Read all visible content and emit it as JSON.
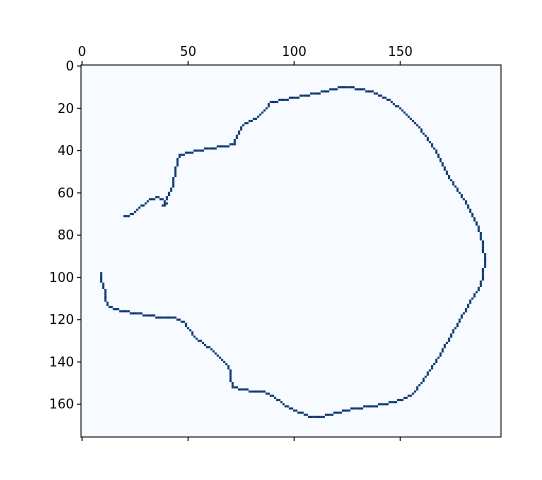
{
  "chart_data": {
    "type": "heatmap",
    "colormap": "Blues",
    "background_color": "#f7fbff",
    "foreground_color": "#08306b",
    "x_ticks": [
      0,
      50,
      100,
      150
    ],
    "x_extra_ticks_unlabeled": [
      200
    ],
    "y_ticks": [
      0,
      20,
      40,
      60,
      80,
      100,
      120,
      140,
      160
    ],
    "xlim": [
      -0.5,
      197.5
    ],
    "ylim": [
      175.5,
      -0.5
    ],
    "x_tick_position": "top",
    "grid": false,
    "legend": "none",
    "contour": [
      [
        20,
        71
      ],
      [
        24,
        70
      ],
      [
        27,
        67
      ],
      [
        30,
        65
      ],
      [
        32,
        63
      ],
      [
        36,
        62
      ],
      [
        38,
        63
      ],
      [
        40,
        65
      ],
      [
        38,
        66
      ],
      [
        40,
        63
      ],
      [
        40,
        62
      ],
      [
        41,
        60
      ],
      [
        42,
        58
      ],
      [
        43,
        56
      ],
      [
        43,
        53
      ],
      [
        44,
        51
      ],
      [
        44,
        48
      ],
      [
        45,
        46
      ],
      [
        45,
        44
      ],
      [
        46,
        42
      ],
      [
        50,
        41
      ],
      [
        55,
        40
      ],
      [
        60,
        39
      ],
      [
        66,
        38
      ],
      [
        72,
        37
      ],
      [
        72,
        35
      ],
      [
        73,
        33
      ],
      [
        74,
        31
      ],
      [
        75,
        29
      ],
      [
        77,
        27
      ],
      [
        80,
        26
      ],
      [
        83,
        24
      ],
      [
        85,
        22
      ],
      [
        87,
        20
      ],
      [
        88,
        18
      ],
      [
        89,
        17
      ],
      [
        95,
        16
      ],
      [
        100,
        15
      ],
      [
        105,
        14
      ],
      [
        110,
        13
      ],
      [
        114,
        12
      ],
      [
        118,
        11
      ],
      [
        122,
        10
      ],
      [
        127,
        10
      ],
      [
        131,
        11
      ],
      [
        136,
        12
      ],
      [
        141,
        14
      ],
      [
        146,
        17
      ],
      [
        150,
        20
      ],
      [
        154,
        24
      ],
      [
        158,
        28
      ],
      [
        162,
        33
      ],
      [
        166,
        39
      ],
      [
        169,
        45
      ],
      [
        172,
        51
      ],
      [
        176,
        57
      ],
      [
        180,
        63
      ],
      [
        184,
        70
      ],
      [
        187,
        77
      ],
      [
        189,
        85
      ],
      [
        190,
        92
      ],
      [
        189,
        98
      ],
      [
        188,
        104
      ],
      [
        184,
        110
      ],
      [
        180,
        117
      ],
      [
        176,
        124
      ],
      [
        172,
        131
      ],
      [
        168,
        138
      ],
      [
        164,
        144
      ],
      [
        160,
        150
      ],
      [
        156,
        155
      ],
      [
        150,
        158
      ],
      [
        143,
        160
      ],
      [
        136,
        161
      ],
      [
        128,
        162
      ],
      [
        120,
        164
      ],
      [
        113,
        166
      ],
      [
        108,
        166
      ],
      [
        103,
        164
      ],
      [
        98,
        162
      ],
      [
        94,
        159
      ],
      [
        90,
        156
      ],
      [
        86,
        154
      ],
      [
        81,
        154
      ],
      [
        76,
        153
      ],
      [
        71,
        152
      ],
      [
        70,
        148
      ],
      [
        70,
        145
      ],
      [
        68,
        141
      ],
      [
        65,
        138
      ],
      [
        61,
        134
      ],
      [
        57,
        131
      ],
      [
        53,
        128
      ],
      [
        50,
        124
      ],
      [
        48,
        121
      ],
      [
        44,
        119
      ],
      [
        38,
        119
      ],
      [
        32,
        118
      ],
      [
        26,
        117
      ],
      [
        20,
        116
      ],
      [
        16,
        115
      ],
      [
        12,
        113
      ],
      [
        11,
        110
      ],
      [
        11,
        107
      ],
      [
        10,
        104
      ],
      [
        9,
        101
      ],
      [
        9,
        98
      ]
    ]
  }
}
